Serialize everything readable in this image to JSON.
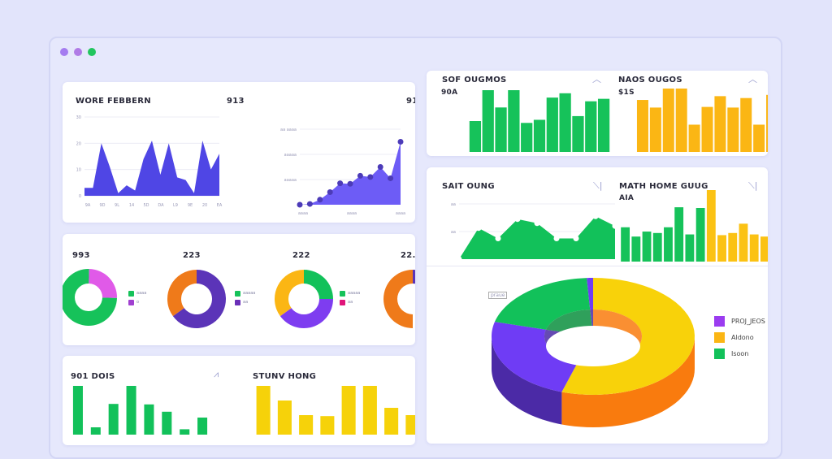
{
  "window": {
    "dots": [
      "#a47cf0",
      "#b07be6",
      "#22c55e"
    ]
  },
  "cards": {
    "a": {
      "title_left": "WORE FEBBERN",
      "title_mid": "913",
      "title_right": "91"
    },
    "b": {
      "labels": [
        "993",
        "223",
        "222",
        "22."
      ],
      "legend_text": [
        "aaaa",
        "o",
        "aaaaa",
        "aa"
      ]
    },
    "c": {
      "title_left": "901 DOIS",
      "title_right": "STUNV HONG"
    },
    "d": {
      "title_left": "SOF OUGMOS",
      "value_left": "90A",
      "title_right": "NAOS OUGOS",
      "value_right": "$1S"
    },
    "e": {
      "title_left": "SAIT OUNG",
      "title_right": "MATH HOME GUUG",
      "value_right": "AIA",
      "callout_left": "praue",
      "legend": [
        "PROJ_JEOS",
        "Aldono",
        "Isoon"
      ]
    }
  },
  "chart_data": [
    {
      "id": "area-left",
      "type": "area",
      "color": "#4f46e5",
      "values": [
        3,
        3,
        20,
        11,
        1,
        4,
        2,
        14,
        21,
        8,
        20,
        7,
        6,
        1,
        21,
        10,
        16
      ],
      "ylim": [
        0,
        30
      ],
      "grid": true,
      "yticks": [
        "30",
        "20",
        "10",
        "0"
      ],
      "xticks": [
        "9A",
        "9D",
        "9L",
        "14",
        "5D",
        "DA",
        "L9",
        "9E",
        "20",
        "EA"
      ]
    },
    {
      "id": "line-growth",
      "type": "area",
      "color": "#6d5cf6",
      "marker_color": "#4c3bb8",
      "values": [
        0,
        0.3,
        2,
        5,
        8.5,
        8.3,
        11.5,
        11,
        15,
        10.5,
        25
      ],
      "ylim": [
        0,
        30
      ],
      "grid": true,
      "yticks": [
        "aa aaaa",
        "aaaaa",
        "aaaaa"
      ],
      "xticks": [
        "aaaa",
        "aaaa",
        "aaaa"
      ]
    },
    {
      "id": "donut-1",
      "type": "pie",
      "values": [
        75,
        25
      ],
      "colors": [
        "#16c25a",
        "#e05ae8"
      ]
    },
    {
      "id": "donut-2",
      "type": "pie",
      "values": [
        65,
        35
      ],
      "colors": [
        "#5b34b8",
        "#ef7a1a"
      ]
    },
    {
      "id": "donut-3",
      "type": "pie",
      "values": [
        25,
        40,
        35
      ],
      "colors": [
        "#12c15a",
        "#7e3df0",
        "#fbb614"
      ]
    },
    {
      "id": "donut-4",
      "type": "pie",
      "values": [
        30,
        20,
        50
      ],
      "colors": [
        "#5b34b8",
        "#ffffff",
        "#ef7a1a"
      ]
    },
    {
      "id": "bars-green-top",
      "type": "bar",
      "color": "#16c25a",
      "values": [
        50,
        100,
        72,
        100,
        47,
        52,
        88,
        95,
        58,
        82,
        86
      ]
    },
    {
      "id": "bars-yellow-top",
      "type": "bar",
      "color": "#fbb614",
      "values": [
        82,
        70,
        100,
        100,
        43,
        71,
        88,
        70,
        85,
        43,
        90
      ]
    },
    {
      "id": "line-green",
      "type": "area",
      "color": "#12c15a",
      "values": [
        0,
        45,
        30,
        58,
        52,
        30,
        30,
        62,
        48
      ],
      "ylim": [
        0,
        80
      ],
      "grid": true,
      "yticks": [
        "aa",
        "aa"
      ]
    },
    {
      "id": "bars-mixed",
      "type": "bar",
      "series": [
        {
          "color": "#16c25a",
          "values": [
            48,
            35,
            42,
            40,
            48,
            76,
            38,
            75
          ]
        },
        {
          "color": "#fbc214",
          "values": [
            100,
            37,
            40,
            53,
            38,
            35
          ]
        }
      ]
    },
    {
      "id": "bars-green-bottom",
      "type": "bar",
      "color": "#12c15a",
      "values": [
        100,
        15,
        63,
        100,
        62,
        47,
        11,
        35
      ],
      "yticks": [
        "aaaa",
        "aa",
        "aaaa",
        "aa",
        "a"
      ]
    },
    {
      "id": "bars-yellow-bottom",
      "type": "bar",
      "color": "#f6d20a",
      "values": [
        100,
        70,
        40,
        38,
        100,
        100,
        55,
        40
      ]
    },
    {
      "id": "donut-3d",
      "type": "pie",
      "values": [
        55,
        24,
        20,
        1
      ],
      "colors": [
        "#f8d20a",
        "#6f3cf5",
        "#12c15a",
        "#6f3cf5"
      ],
      "side_colors": [
        "#f97b0e",
        "#4b2aa6",
        "#0a8f3e",
        "#4b2aa6"
      ]
    }
  ]
}
